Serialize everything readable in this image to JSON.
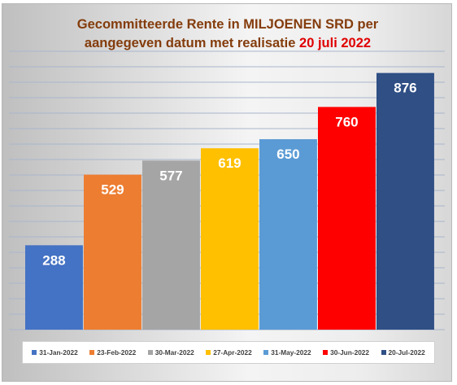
{
  "title": {
    "line1": "Gecommitteerde Rente in MILJOENEN SRD per",
    "line2_prefix": "aangegeven datum met realisatie ",
    "line2_highlight": "20 juli 2022"
  },
  "chart_data": {
    "type": "bar",
    "title": "Gecommitteerde Rente in MILJOENEN SRD per aangegeven datum met realisatie 20 juli 2022",
    "categories": [
      "31-Jan-2022",
      "23-Feb-2022",
      "30-Mar-2022",
      "27-Apr-2022",
      "31-May-2022",
      "30-Jun-2022",
      "20-Jul-2022"
    ],
    "values": [
      288,
      529,
      577,
      619,
      650,
      760,
      876
    ],
    "colors": [
      "#4472c4",
      "#ed7d31",
      "#a5a5a5",
      "#ffc000",
      "#5b9bd5",
      "#ff0000",
      "#2f4f85"
    ],
    "ylim": [
      0,
      950
    ],
    "grid": true,
    "legend_position": "bottom",
    "data_labels": true
  },
  "colors": {
    "title": "#843c0c",
    "title_highlight": "#e00000",
    "gridline": "#a9b6cc"
  }
}
